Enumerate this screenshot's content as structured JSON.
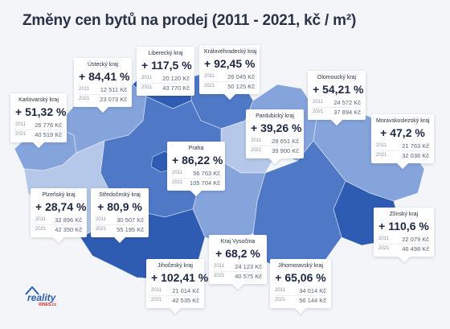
{
  "title": "Změny cen bytů na prodej (2011 - 2021, kč / m²)",
  "logo": {
    "text": "reality",
    "sub": "iDNES.cz"
  },
  "colors": {
    "dark": "#2f5cb3",
    "mid": "#4f79c7",
    "light": "#86a4dc",
    "pale": "#b6c8ea"
  },
  "regions": [
    {
      "name": "Liberecký kraj",
      "change": "+ 117,5 %",
      "y2011": "20 120 Kč",
      "y2021": "43 770 Kč"
    },
    {
      "name": "Ústecký kraj",
      "change": "+ 84,41 %",
      "y2011": "12 511 Kč",
      "y2021": "23 073 Kč"
    },
    {
      "name": "Královéhradecký kraj",
      "change": "+ 92,45 %",
      "y2011": "26 045 Kč",
      "y2021": "50 125 Kč"
    },
    {
      "name": "Olomoucký kraj",
      "change": "+ 54,21 %",
      "y2011": "24 572 Kč",
      "y2021": "37 894 Kč"
    },
    {
      "name": "Karlovarský kraj",
      "change": "+ 51,32 %",
      "y2011": "26 776 Kč",
      "y2021": "40 519 Kč"
    },
    {
      "name": "Pardubický kraj",
      "change": "+ 39,26 %",
      "y2011": "28 651 Kč",
      "y2021": "39 900 Kč"
    },
    {
      "name": "Moravskoslezský kraj",
      "change": "+ 47,2 %",
      "y2011": "21 763 Kč",
      "y2021": "32 036 Kč"
    },
    {
      "name": "Praha",
      "change": "+ 86,22 %",
      "y2011": "56 763 Kč",
      "y2021": "105 704 Kč"
    },
    {
      "name": "Plzeňský kraj",
      "change": "+ 28,74 %",
      "y2011": "32 896 Kč",
      "y2021": "42 350 Kč"
    },
    {
      "name": "Středočeský kraj",
      "change": "+ 80,9 %",
      "y2011": "30 507 Kč",
      "y2021": "55 195 Kč"
    },
    {
      "name": "Zlínský kraj",
      "change": "+ 110,6 %",
      "y2011": "22 079 Kč",
      "y2021": "46 498 Kč"
    },
    {
      "name": "Kraj Vysočina",
      "change": "+ 68,2 %",
      "y2011": "24 123 Kč",
      "y2021": "40 575 Kč"
    },
    {
      "name": "Jihočeský kraj",
      "change": "+ 102,41 %",
      "y2011": "21 014 Kč",
      "y2021": "42 535 Kč"
    },
    {
      "name": "Jihomoravský kraj",
      "change": "+ 65,06 %",
      "y2011": "34 014 Kč",
      "y2021": "56 144 Kč"
    }
  ],
  "labels": {
    "year_a": "2011",
    "year_b": "2021"
  }
}
